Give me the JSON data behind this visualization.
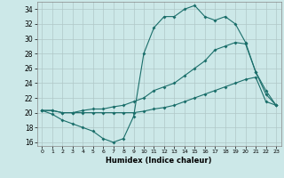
{
  "title": "",
  "xlabel": "Humidex (Indice chaleur)",
  "xlim": [
    -0.5,
    23.5
  ],
  "ylim": [
    15.5,
    35.0
  ],
  "xticks": [
    0,
    1,
    2,
    3,
    4,
    5,
    6,
    7,
    8,
    9,
    10,
    11,
    12,
    13,
    14,
    15,
    16,
    17,
    18,
    19,
    20,
    21,
    22,
    23
  ],
  "yticks": [
    16,
    18,
    20,
    22,
    24,
    26,
    28,
    30,
    32,
    34
  ],
  "bg_color": "#cce8e8",
  "grid_color": "#b0c8c8",
  "line_color": "#1a6e6a",
  "line1_x": [
    0,
    1,
    2,
    3,
    4,
    5,
    6,
    7,
    8,
    9,
    10,
    11,
    12,
    13,
    14,
    15,
    16,
    17,
    18,
    19,
    20,
    21,
    22,
    23
  ],
  "line1_y": [
    20.3,
    19.8,
    19.0,
    18.5,
    18.0,
    17.5,
    16.5,
    16.0,
    16.5,
    19.5,
    28.0,
    31.5,
    33.0,
    33.0,
    34.0,
    34.5,
    33.0,
    32.5,
    33.0,
    32.0,
    29.5,
    25.5,
    22.5,
    21.0
  ],
  "line2_x": [
    0,
    1,
    2,
    3,
    4,
    5,
    6,
    7,
    8,
    9,
    10,
    11,
    12,
    13,
    14,
    15,
    16,
    17,
    18,
    19,
    20,
    21,
    22,
    23
  ],
  "line2_y": [
    20.3,
    20.3,
    20.0,
    20.0,
    20.3,
    20.5,
    20.5,
    20.8,
    21.0,
    21.5,
    22.0,
    23.0,
    23.5,
    24.0,
    25.0,
    26.0,
    27.0,
    28.5,
    29.0,
    29.5,
    29.3,
    25.5,
    23.0,
    21.0
  ],
  "line3_x": [
    0,
    1,
    2,
    3,
    4,
    5,
    6,
    7,
    8,
    9,
    10,
    11,
    12,
    13,
    14,
    15,
    16,
    17,
    18,
    19,
    20,
    21,
    22,
    23
  ],
  "line3_y": [
    20.3,
    20.3,
    20.0,
    20.0,
    20.0,
    20.0,
    20.0,
    20.0,
    20.0,
    20.0,
    20.2,
    20.5,
    20.7,
    21.0,
    21.5,
    22.0,
    22.5,
    23.0,
    23.5,
    24.0,
    24.5,
    24.8,
    21.5,
    21.0
  ]
}
